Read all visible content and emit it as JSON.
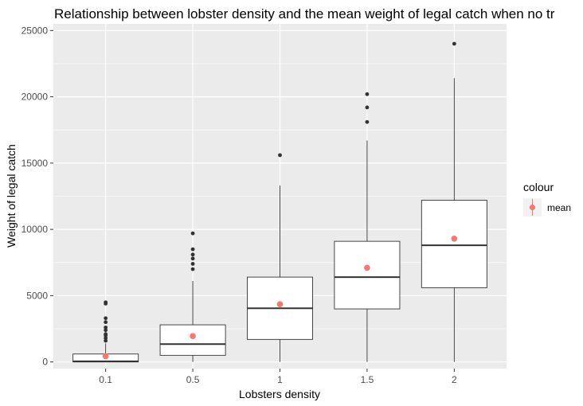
{
  "chart_data": {
    "type": "boxplot",
    "title": "Relationship between lobster density and the mean weight of legal catch when no tr",
    "xlabel": "Lobsters density",
    "ylabel": "Weight of legal catch",
    "categories": [
      "0.1",
      "0.5",
      "1",
      "1.5",
      "2"
    ],
    "ylim": [
      -500,
      25500
    ],
    "yticks": [
      0,
      5000,
      10000,
      15000,
      20000,
      25000
    ],
    "ytick_labels": [
      "0",
      "5000",
      "10000",
      "15000",
      "20000",
      "25000"
    ],
    "boxes": [
      {
        "category": "0.1",
        "whisker_low": 0,
        "q1": 0,
        "median": 50,
        "q3": 600,
        "whisker_high": 1400,
        "mean": 430,
        "outliers": [
          1600,
          1800,
          2000,
          2100,
          2400,
          2600,
          3000,
          3300,
          4400,
          4500
        ]
      },
      {
        "category": "0.5",
        "whisker_low": 0,
        "q1": 500,
        "median": 1350,
        "q3": 2800,
        "whisker_high": 6100,
        "mean": 1950,
        "outliers": [
          7000,
          7400,
          7800,
          8100,
          8500,
          9700
        ]
      },
      {
        "category": "1",
        "whisker_low": 0,
        "q1": 1700,
        "median": 4050,
        "q3": 6400,
        "whisker_high": 13300,
        "mean": 4350,
        "outliers": [
          15600
        ]
      },
      {
        "category": "1.5",
        "whisker_low": 0,
        "q1": 4000,
        "median": 6400,
        "q3": 9100,
        "whisker_high": 16700,
        "mean": 7100,
        "outliers": [
          18100,
          19200,
          20200
        ]
      },
      {
        "category": "2",
        "whisker_low": 0,
        "q1": 5600,
        "median": 8800,
        "q3": 12200,
        "whisker_high": 21400,
        "mean": 9300,
        "outliers": [
          24000
        ]
      }
    ],
    "legend": {
      "title": "colour",
      "entries": [
        {
          "label": "mean",
          "color": "#F8766D"
        }
      ],
      "placement": "right"
    },
    "grid": true,
    "colors": {
      "panel": "#EBEBEB",
      "grid": "#FFFFFF",
      "box_fill": "#FFFFFF",
      "box_line": "#333333",
      "mean": "#F8766D"
    }
  }
}
